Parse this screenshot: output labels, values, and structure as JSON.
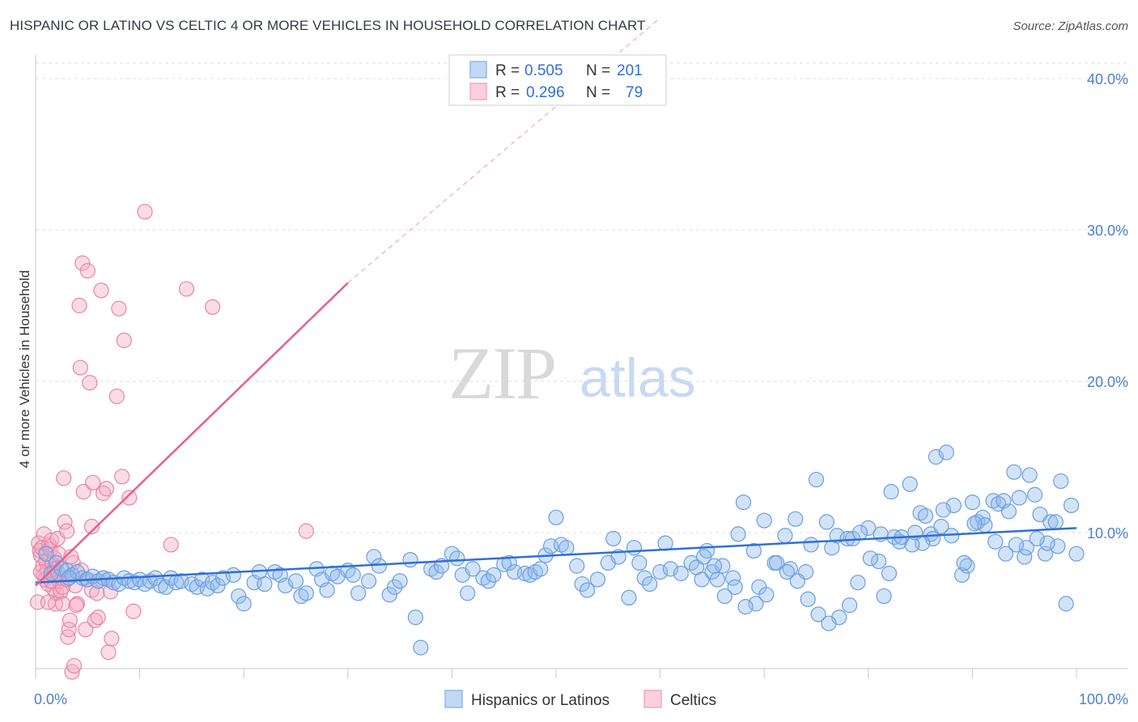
{
  "title": "HISPANIC OR LATINO VS CELTIC 4 OR MORE VEHICLES IN HOUSEHOLD CORRELATION CHART",
  "source": "Source: ZipAtlas.com",
  "watermark": {
    "zip": "ZIP",
    "atlas": "atlas"
  },
  "legend": {
    "rows": [
      {
        "r_label": "R =",
        "r_value": "0.505",
        "n_label": "N =",
        "n_value": "201",
        "color": "#8fb8ee"
      },
      {
        "r_label": "R =",
        "r_value": "0.296",
        "n_label": "N =",
        "n_value": "79",
        "color": "#f5a8c0"
      }
    ]
  },
  "bottom_legend": [
    "Hispanics or Latinos",
    "Celtics"
  ],
  "chart_data": {
    "type": "scatter",
    "xlabel": "",
    "ylabel": "4 or more Vehicles in Household",
    "xlim": [
      0,
      100
    ],
    "ylim": [
      0,
      42
    ],
    "x_tick_labels": [
      "0.0%",
      "100.0%"
    ],
    "y_ticks": [
      10,
      20,
      30,
      40
    ],
    "y_tick_labels": [
      "10.0%",
      "20.0%",
      "30.0%",
      "40.0%"
    ],
    "grid": true,
    "legend_position": "top-center",
    "series": [
      {
        "name": "Hispanics or Latinos",
        "color": "#8fb8ee",
        "stroke": "#6a9ee0",
        "trend": {
          "x": [
            0,
            100
          ],
          "y": [
            6.7,
            10.3
          ],
          "color": "#2f6fd8"
        },
        "points": [
          [
            1,
            8.6
          ],
          [
            1.5,
            7.3
          ],
          [
            2,
            8.0
          ],
          [
            2.5,
            7.6
          ],
          [
            3,
            7.5
          ],
          [
            3.5,
            7.2
          ],
          [
            4,
            7.4
          ],
          [
            4.5,
            7.0
          ],
          [
            5,
            6.9
          ],
          [
            5.5,
            7.1
          ],
          [
            6,
            6.8
          ],
          [
            6.5,
            7.0
          ],
          [
            7,
            6.9
          ],
          [
            7.5,
            6.7
          ],
          [
            8,
            6.6
          ],
          [
            8.5,
            7.0
          ],
          [
            9,
            6.8
          ],
          [
            9.5,
            6.7
          ],
          [
            10,
            6.9
          ],
          [
            10.5,
            6.6
          ],
          [
            11,
            6.8
          ],
          [
            11.5,
            7.0
          ],
          [
            12,
            6.5
          ],
          [
            12.5,
            6.4
          ],
          [
            13,
            7.0
          ],
          [
            13.5,
            6.7
          ],
          [
            14,
            6.8
          ],
          [
            15,
            6.6
          ],
          [
            15.5,
            6.4
          ],
          [
            16,
            6.9
          ],
          [
            16.5,
            6.3
          ],
          [
            17,
            6.7
          ],
          [
            17.5,
            6.5
          ],
          [
            18,
            7.0
          ],
          [
            19,
            7.2
          ],
          [
            19.5,
            5.8
          ],
          [
            20,
            5.3
          ],
          [
            21,
            6.7
          ],
          [
            21.5,
            7.4
          ],
          [
            22,
            6.6
          ],
          [
            23,
            7.4
          ],
          [
            23.5,
            7.2
          ],
          [
            24,
            6.5
          ],
          [
            25,
            6.8
          ],
          [
            25.5,
            5.8
          ],
          [
            26,
            6.0
          ],
          [
            27,
            7.6
          ],
          [
            27.5,
            6.9
          ],
          [
            28,
            6.2
          ],
          [
            28.5,
            7.3
          ],
          [
            29,
            7.1
          ],
          [
            30,
            7.5
          ],
          [
            30.5,
            7.2
          ],
          [
            31,
            6.0
          ],
          [
            32,
            6.8
          ],
          [
            32.5,
            8.4
          ],
          [
            33,
            7.8
          ],
          [
            34,
            5.9
          ],
          [
            34.5,
            6.4
          ],
          [
            35,
            6.8
          ],
          [
            36,
            8.2
          ],
          [
            36.5,
            4.4
          ],
          [
            37,
            2.4
          ],
          [
            38,
            7.6
          ],
          [
            38.5,
            7.4
          ],
          [
            39,
            7.8
          ],
          [
            40,
            8.6
          ],
          [
            40.5,
            8.3
          ],
          [
            41,
            7.2
          ],
          [
            41.5,
            6.0
          ],
          [
            42,
            7.6
          ],
          [
            43,
            7.0
          ],
          [
            43.5,
            6.8
          ],
          [
            44,
            7.2
          ],
          [
            45,
            7.9
          ],
          [
            45.5,
            8.0
          ],
          [
            46,
            7.4
          ],
          [
            47,
            7.3
          ],
          [
            47.5,
            7.2
          ],
          [
            48,
            7.4
          ],
          [
            48.5,
            7.6
          ],
          [
            49,
            8.5
          ],
          [
            49.5,
            9.1
          ],
          [
            50,
            11.0
          ],
          [
            50.5,
            9.2
          ],
          [
            51,
            9.0
          ],
          [
            52,
            7.8
          ],
          [
            52.5,
            6.6
          ],
          [
            53,
            6.2
          ],
          [
            54,
            6.9
          ],
          [
            55,
            8.0
          ],
          [
            55.5,
            9.6
          ],
          [
            56,
            8.4
          ],
          [
            57,
            5.7
          ],
          [
            57.5,
            9.0
          ],
          [
            58,
            8.0
          ],
          [
            58.5,
            7.0
          ],
          [
            59,
            6.6
          ],
          [
            60,
            7.4
          ],
          [
            60.5,
            9.3
          ],
          [
            61,
            7.6
          ],
          [
            62,
            7.3
          ],
          [
            63,
            8.0
          ],
          [
            63.5,
            7.7
          ],
          [
            64,
            6.9
          ],
          [
            64.5,
            8.8
          ],
          [
            65,
            7.4
          ],
          [
            65.5,
            6.9
          ],
          [
            66,
            7.8
          ],
          [
            67,
            7.0
          ],
          [
            67.5,
            9.9
          ],
          [
            68,
            12.0
          ],
          [
            69,
            8.8
          ],
          [
            69.5,
            6.4
          ],
          [
            70,
            10.8
          ],
          [
            71,
            8.0
          ],
          [
            72,
            9.8
          ],
          [
            72.5,
            7.6
          ],
          [
            73,
            10.9
          ],
          [
            74,
            7.4
          ],
          [
            74.5,
            9.2
          ],
          [
            75,
            13.5
          ],
          [
            76,
            10.7
          ],
          [
            76.5,
            9.0
          ],
          [
            77,
            9.8
          ],
          [
            78,
            9.6
          ],
          [
            78.5,
            9.6
          ],
          [
            79,
            6.7
          ],
          [
            80,
            10.3
          ],
          [
            81,
            8.1
          ],
          [
            81.5,
            5.8
          ],
          [
            82,
            7.3
          ],
          [
            82.5,
            9.7
          ],
          [
            83,
            9.4
          ],
          [
            84,
            13.2
          ],
          [
            84.5,
            10.0
          ],
          [
            85,
            11.3
          ],
          [
            85.5,
            11.1
          ],
          [
            86,
            9.9
          ],
          [
            86.5,
            15.0
          ],
          [
            87,
            10.4
          ],
          [
            87.5,
            15.3
          ],
          [
            88,
            9.8
          ],
          [
            89,
            7.2
          ],
          [
            89.5,
            7.8
          ],
          [
            90,
            12.0
          ],
          [
            90.5,
            10.7
          ],
          [
            91,
            11.0
          ],
          [
            92,
            12.1
          ],
          [
            92.5,
            11.9
          ],
          [
            93,
            12.1
          ],
          [
            93.5,
            11.4
          ],
          [
            94,
            14.0
          ],
          [
            94.5,
            12.3
          ],
          [
            95,
            8.4
          ],
          [
            95.5,
            13.8
          ],
          [
            96,
            12.5
          ],
          [
            96.5,
            11.2
          ],
          [
            97,
            8.6
          ],
          [
            97.5,
            10.7
          ],
          [
            98,
            10.7
          ],
          [
            98.5,
            13.4
          ],
          [
            99,
            5.3
          ],
          [
            99.5,
            11.8
          ],
          [
            100,
            8.6
          ],
          [
            98.2,
            9.1
          ],
          [
            97.2,
            9.3
          ],
          [
            96.2,
            9.6
          ],
          [
            95.2,
            9.0
          ],
          [
            94.2,
            9.2
          ],
          [
            93.2,
            8.6
          ],
          [
            92.2,
            9.4
          ],
          [
            91.2,
            10.5
          ],
          [
            90.2,
            10.6
          ],
          [
            89.2,
            8.0
          ],
          [
            88.2,
            11.8
          ],
          [
            87.2,
            11.5
          ],
          [
            86.2,
            9.6
          ],
          [
            85.2,
            9.3
          ],
          [
            84.2,
            9.2
          ],
          [
            83.2,
            9.7
          ],
          [
            82.2,
            12.7
          ],
          [
            81.2,
            9.9
          ],
          [
            80.2,
            8.3
          ],
          [
            79.2,
            10.0
          ],
          [
            78.2,
            5.2
          ],
          [
            77.2,
            4.4
          ],
          [
            76.2,
            4.0
          ],
          [
            75.2,
            4.6
          ],
          [
            74.2,
            5.6
          ],
          [
            73.2,
            6.8
          ],
          [
            72.2,
            7.4
          ],
          [
            71.2,
            8.0
          ],
          [
            70.2,
            5.9
          ],
          [
            69.2,
            5.3
          ],
          [
            68.2,
            5.1
          ],
          [
            67.2,
            6.4
          ],
          [
            66.2,
            5.8
          ],
          [
            65.2,
            7.8
          ],
          [
            64.2,
            8.4
          ],
          [
            3.2,
            7.0
          ]
        ]
      },
      {
        "name": "Celtics",
        "color": "#f5a8c0",
        "stroke": "#e884a4",
        "trend": {
          "x": [
            0,
            30
          ],
          "y": [
            6.5,
            26.5
          ],
          "color": "#e8608a",
          "dashed_to": [
            60,
            44
          ]
        },
        "points": [
          [
            0.3,
            9.3
          ],
          [
            0.4,
            8.8
          ],
          [
            0.5,
            8.5
          ],
          [
            0.6,
            9.0
          ],
          [
            0.7,
            7.8
          ],
          [
            0.8,
            7.2
          ],
          [
            0.9,
            6.9
          ],
          [
            1.0,
            8.1
          ],
          [
            1.1,
            7.5
          ],
          [
            1.2,
            6.6
          ],
          [
            1.3,
            9.2
          ],
          [
            1.4,
            8.9
          ],
          [
            1.5,
            9.5
          ],
          [
            1.6,
            7.9
          ],
          [
            1.7,
            6.3
          ],
          [
            1.8,
            8.3
          ],
          [
            1.9,
            5.3
          ],
          [
            2.0,
            6.0
          ],
          [
            2.1,
            9.6
          ],
          [
            2.2,
            8.6
          ],
          [
            2.3,
            6.8
          ],
          [
            2.4,
            6.1
          ],
          [
            2.5,
            7.0
          ],
          [
            2.6,
            5.3
          ],
          [
            2.7,
            13.6
          ],
          [
            2.8,
            10.7
          ],
          [
            3.0,
            10.1
          ],
          [
            3.1,
            3.1
          ],
          [
            3.2,
            3.6
          ],
          [
            3.3,
            4.2
          ],
          [
            3.5,
            0.8
          ],
          [
            3.6,
            8.0
          ],
          [
            3.7,
            1.2
          ],
          [
            3.8,
            6.5
          ],
          [
            4.0,
            5.3
          ],
          [
            4.2,
            25.0
          ],
          [
            4.3,
            20.9
          ],
          [
            4.5,
            27.8
          ],
          [
            4.6,
            12.7
          ],
          [
            4.8,
            3.6
          ],
          [
            5.0,
            27.3
          ],
          [
            5.2,
            19.9
          ],
          [
            5.4,
            10.4
          ],
          [
            5.5,
            13.3
          ],
          [
            5.7,
            4.2
          ],
          [
            6.0,
            4.4
          ],
          [
            6.3,
            26.0
          ],
          [
            6.5,
            12.6
          ],
          [
            6.8,
            12.9
          ],
          [
            7.0,
            2.1
          ],
          [
            7.3,
            3.0
          ],
          [
            7.8,
            19.0
          ],
          [
            8.0,
            24.8
          ],
          [
            8.3,
            13.7
          ],
          [
            8.5,
            22.7
          ],
          [
            9.0,
            12.3
          ],
          [
            9.4,
            4.8
          ],
          [
            10.5,
            31.2
          ],
          [
            13.0,
            9.2
          ],
          [
            14.5,
            26.1
          ],
          [
            17.0,
            24.9
          ],
          [
            26.0,
            10.1
          ],
          [
            0.2,
            5.4
          ],
          [
            0.5,
            7.4
          ],
          [
            0.8,
            9.9
          ],
          [
            1.2,
            5.4
          ],
          [
            1.5,
            6.8
          ],
          [
            1.8,
            7.6
          ],
          [
            2.2,
            7.3
          ],
          [
            2.6,
            6.4
          ],
          [
            3.0,
            6.9
          ],
          [
            3.4,
            8.4
          ],
          [
            3.9,
            5.2
          ],
          [
            4.4,
            7.5
          ],
          [
            4.9,
            6.9
          ],
          [
            5.4,
            6.2
          ],
          [
            5.9,
            6.0
          ],
          [
            6.5,
            7.0
          ],
          [
            7.2,
            6.1
          ]
        ]
      }
    ]
  }
}
